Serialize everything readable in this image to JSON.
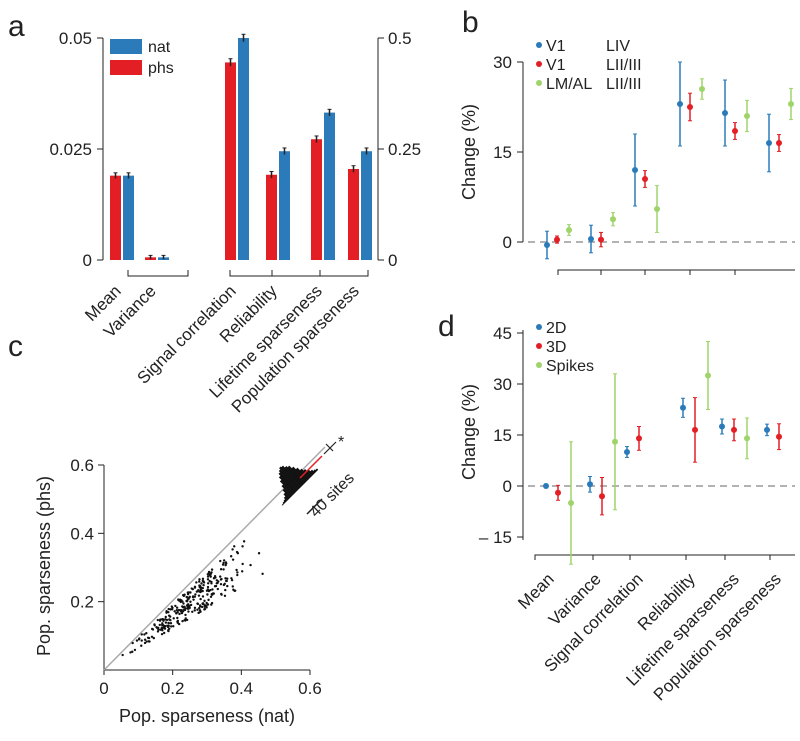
{
  "chart_data": [
    {
      "panel": "a",
      "type": "bar",
      "legend": [
        {
          "name": "nat",
          "color": "#2b7bba"
        },
        {
          "name": "phs",
          "color": "#e31e24"
        }
      ],
      "categories": [
        "Mean",
        "Variance",
        "Signal correlation",
        "Reliability",
        "Lifetime sparseness",
        "Population sparseness"
      ],
      "left_axis": {
        "ticks": [
          "0",
          "0.025",
          "0.05"
        ],
        "ylim": [
          0,
          0.05
        ]
      },
      "right_axis": {
        "ticks": [
          "0",
          "0.25",
          "0.5"
        ],
        "ylim": [
          0,
          0.5
        ]
      },
      "axis_for_category": [
        "left",
        "left",
        "right",
        "right",
        "right",
        "right"
      ],
      "series": [
        {
          "name": "phs",
          "color": "#e31e24",
          "values": [
            0.019,
            0.0006,
            0.445,
            0.192,
            0.272,
            0.205
          ],
          "errors": [
            0.0003,
            0.0001,
            0.005,
            0.004,
            0.004,
            0.004
          ]
        },
        {
          "name": "nat",
          "color": "#2b7bba",
          "values": [
            0.019,
            0.0006,
            0.5,
            0.245,
            0.332,
            0.245
          ],
          "errors": [
            0.0003,
            0.0001,
            0.005,
            0.004,
            0.004,
            0.004
          ]
        }
      ]
    },
    {
      "panel": "b",
      "type": "scatter",
      "ylabel": "Change (%)",
      "yticks": [
        "0",
        "15",
        "30"
      ],
      "ylim": [
        -3,
        33
      ],
      "legend": [
        {
          "area": "V1",
          "layer": "LIV",
          "color": "#2b7bba"
        },
        {
          "area": "V1",
          "layer": "LII/III",
          "color": "#e31e24"
        },
        {
          "area": "LM/AL",
          "layer": "LII/III",
          "color": "#9fd46a"
        }
      ],
      "series": [
        {
          "name": "V1 LIV",
          "color": "#2b7bba",
          "values": [
            -0.5,
            0.5,
            12,
            23,
            21.5,
            16.5
          ],
          "errors": [
            2.3,
            2.3,
            6,
            7,
            5.5,
            4.8
          ]
        },
        {
          "name": "V1 LII/III",
          "color": "#e31e24",
          "values": [
            0.4,
            0.4,
            10.5,
            22.5,
            18.5,
            16.5
          ],
          "errors": [
            0.6,
            1.2,
            1.4,
            2.3,
            1.4,
            1.4
          ]
        },
        {
          "name": "LM/AL LII/III",
          "color": "#9fd46a",
          "values": [
            2,
            3.8,
            5.5,
            25.5,
            21,
            23
          ],
          "errors": [
            0.9,
            1.1,
            3.9,
            1.7,
            2.6,
            2.6
          ]
        }
      ]
    },
    {
      "panel": "c",
      "type": "scatter",
      "xlabel": "Pop. sparseness (nat)",
      "ylabel": "Pop. sparseness (phs)",
      "xticks": [
        "0",
        "0.2",
        "0.4",
        "0.6"
      ],
      "yticks": [
        "0.2",
        "0.4",
        "0.6"
      ],
      "xlim": [
        0,
        0.6
      ],
      "ylim": [
        0,
        0.6
      ],
      "n_points": 300,
      "inset_histogram": {
        "scale_label": "40 sites",
        "significance": "*",
        "counts": [
          1,
          2,
          3,
          5,
          8,
          12,
          16,
          21,
          25,
          28,
          30,
          32,
          31,
          28,
          26,
          22,
          18,
          14,
          11,
          8,
          5,
          3,
          2
        ]
      }
    },
    {
      "panel": "d",
      "type": "scatter",
      "ylabel": "Change (%)",
      "yticks": [
        "– 15",
        "0",
        "15",
        "30",
        "45"
      ],
      "ylim": [
        -20,
        45
      ],
      "categories": [
        "Mean",
        "Variance",
        "Signal correlation",
        "Reliability",
        "Lifetime sparseness",
        "Population sparseness"
      ],
      "legend": [
        {
          "name": "2D",
          "color": "#2b7bba"
        },
        {
          "name": "3D",
          "color": "#e31e24"
        },
        {
          "name": "Spikes",
          "color": "#9fd46a"
        }
      ],
      "series": [
        {
          "name": "2D",
          "color": "#2b7bba",
          "values": [
            0,
            0.5,
            10,
            23,
            17.5,
            16.5
          ],
          "errors": [
            0.6,
            2.3,
            1.6,
            2.8,
            2.2,
            1.7
          ]
        },
        {
          "name": "3D",
          "color": "#e31e24",
          "values": [
            -2,
            -3,
            14,
            16.5,
            16.5,
            14.5
          ],
          "errors": [
            2.2,
            5.5,
            3.5,
            9.5,
            3.2,
            3.8
          ]
        },
        {
          "name": "Spikes",
          "color": "#9fd46a",
          "values": [
            -5,
            13,
            null,
            32.5,
            14,
            null
          ],
          "errors": [
            18,
            20,
            null,
            10,
            6,
            null
          ]
        }
      ]
    }
  ],
  "panel_labels": [
    "a",
    "b",
    "c",
    "d"
  ]
}
